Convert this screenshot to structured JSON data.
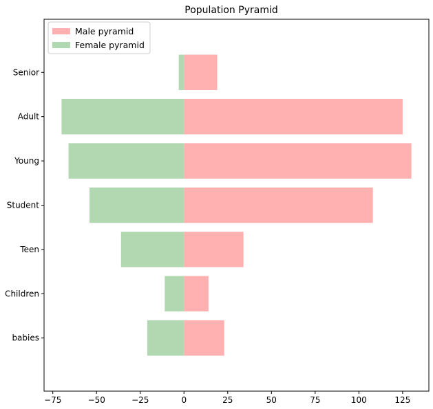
{
  "chart_data": {
    "type": "bar",
    "orientation": "horizontal",
    "title": "Population Pyramid",
    "xlabel": "",
    "ylabel": "",
    "categories": [
      "babies",
      "Children",
      "Teen",
      "Student",
      "Young",
      "Adult",
      "Senior"
    ],
    "series": [
      {
        "name": "Male pyramid",
        "color": "#ffb1b1",
        "values": [
          23,
          14,
          34,
          108,
          130,
          125,
          19
        ]
      },
      {
        "name": "Female pyramid",
        "color": "#b2d8b2",
        "values": [
          -21,
          -11,
          -36,
          -54,
          -66,
          -70,
          -3
        ]
      }
    ],
    "xlim": [
      -80,
      140
    ],
    "xticks": [
      -75,
      -50,
      -25,
      0,
      25,
      50,
      75,
      100,
      125
    ],
    "xtick_labels": [
      "−75",
      "−50",
      "−25",
      "0",
      "25",
      "50",
      "75",
      "100",
      "125"
    ],
    "grid": false,
    "legend_position": "top-left"
  }
}
